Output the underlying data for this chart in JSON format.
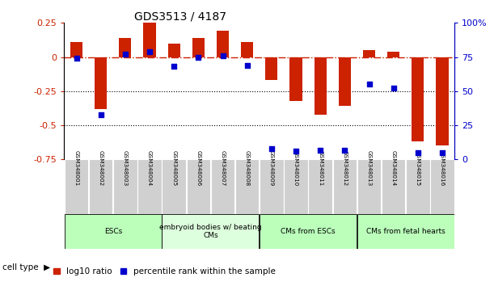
{
  "title": "GDS3513 / 4187",
  "samples": [
    "GSM348001",
    "GSM348002",
    "GSM348003",
    "GSM348004",
    "GSM348005",
    "GSM348006",
    "GSM348007",
    "GSM348008",
    "GSM348009",
    "GSM348010",
    "GSM348011",
    "GSM348012",
    "GSM348013",
    "GSM348014",
    "GSM348015",
    "GSM348016"
  ],
  "log10_ratio": [
    0.11,
    -0.38,
    0.14,
    0.25,
    0.1,
    0.14,
    0.19,
    0.11,
    -0.17,
    -0.32,
    -0.42,
    -0.36,
    0.05,
    0.04,
    -0.62,
    -0.65
  ],
  "percentile_rank": [
    74,
    33,
    77,
    79,
    68,
    75,
    76,
    69,
    8,
    6,
    7,
    7,
    55,
    52,
    5,
    5
  ],
  "cell_type_groups": [
    {
      "label": "ESCs",
      "start": 0,
      "end": 3,
      "color": "#bbffbb"
    },
    {
      "label": "embryoid bodies w/ beating\nCMs",
      "start": 4,
      "end": 7,
      "color": "#ddffdd"
    },
    {
      "label": "CMs from ESCs",
      "start": 8,
      "end": 11,
      "color": "#bbffbb"
    },
    {
      "label": "CMs from fetal hearts",
      "start": 12,
      "end": 15,
      "color": "#bbffbb"
    }
  ],
  "bar_color": "#cc2200",
  "dot_color": "#0000cc",
  "ylim_left": [
    -0.75,
    0.25
  ],
  "ylim_right": [
    0,
    100
  ],
  "yticks_left": [
    -0.75,
    -0.5,
    -0.25,
    0,
    0.25
  ],
  "yticks_right": [
    0,
    25,
    50,
    75,
    100
  ],
  "dotted_lines": [
    -0.25,
    -0.5
  ],
  "bar_width": 0.5
}
